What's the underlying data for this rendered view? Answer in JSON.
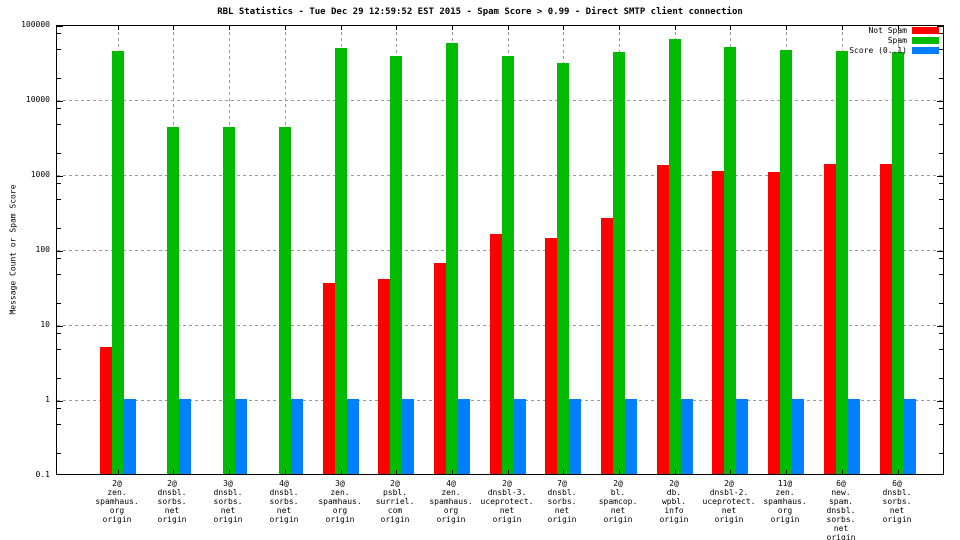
{
  "chart_data": {
    "type": "bar",
    "title": "RBL Statistics - Tue Dec 29 12:59:52 EST 2015 - Spam Score > 0.99 - Direct SMTP client connection",
    "ylabel": "Message Count or Spam Score",
    "xlabel": "",
    "y_scale": "log",
    "ylim": [
      0.1,
      100000
    ],
    "y_ticks": [
      "100000",
      "10000",
      "1000",
      "100",
      "10",
      "1",
      "0.1"
    ],
    "grid": true,
    "legend_position": "top-right-inside",
    "categories": [
      [
        "2@",
        "zen.",
        "spamhaus.",
        "org",
        "origin"
      ],
      [
        "2@",
        "dnsbl.",
        "sorbs.",
        "net",
        "origin"
      ],
      [
        "3@",
        "dnsbl.",
        "sorbs.",
        "net",
        "origin"
      ],
      [
        "4@",
        "dnsbl.",
        "sorbs.",
        "net",
        "origin"
      ],
      [
        "3@",
        "zen.",
        "spamhaus.",
        "org",
        "origin"
      ],
      [
        "2@",
        "psbl.",
        "surriel.",
        "com",
        "origin"
      ],
      [
        "4@",
        "zen.",
        "spamhaus.",
        "org",
        "origin"
      ],
      [
        "2@",
        "dnsbl-3.",
        "uceprotect.",
        "net",
        "origin"
      ],
      [
        "7@",
        "dnsbl.",
        "sorbs.",
        "net",
        "origin"
      ],
      [
        "2@",
        "bl.",
        "spamcop.",
        "net",
        "origin"
      ],
      [
        "2@",
        "db.",
        "wpbl.",
        "info",
        "origin"
      ],
      [
        "2@",
        "dnsbl-2.",
        "uceprotect.",
        "net",
        "origin"
      ],
      [
        "11@",
        "zen.",
        "spamhaus.",
        "org",
        "origin"
      ],
      [
        "6@",
        "new.",
        "spam.",
        "dnsbl.",
        "sorbs.",
        "net",
        "origin"
      ],
      [
        "6@",
        "dnsbl.",
        "sorbs.",
        "net",
        "origin"
      ]
    ],
    "series": [
      {
        "name": "Not Spam",
        "color": "#ff0000",
        "values": [
          5,
          0,
          0,
          0,
          35,
          40,
          65,
          160,
          140,
          260,
          1300,
          1100,
          1050,
          1350,
          1350
        ]
      },
      {
        "name": "Spam",
        "color": "#00bb00",
        "values": [
          43000,
          4200,
          4200,
          4200,
          48000,
          38000,
          55000,
          38000,
          30000,
          42000,
          64000,
          49000,
          45000,
          43000,
          42000
        ]
      },
      {
        "name": "Score (0..1)",
        "color": "#0080ff",
        "values": [
          1,
          1,
          1,
          1,
          1,
          1,
          1,
          1,
          1,
          1,
          1,
          1,
          1,
          1,
          1
        ]
      }
    ]
  }
}
